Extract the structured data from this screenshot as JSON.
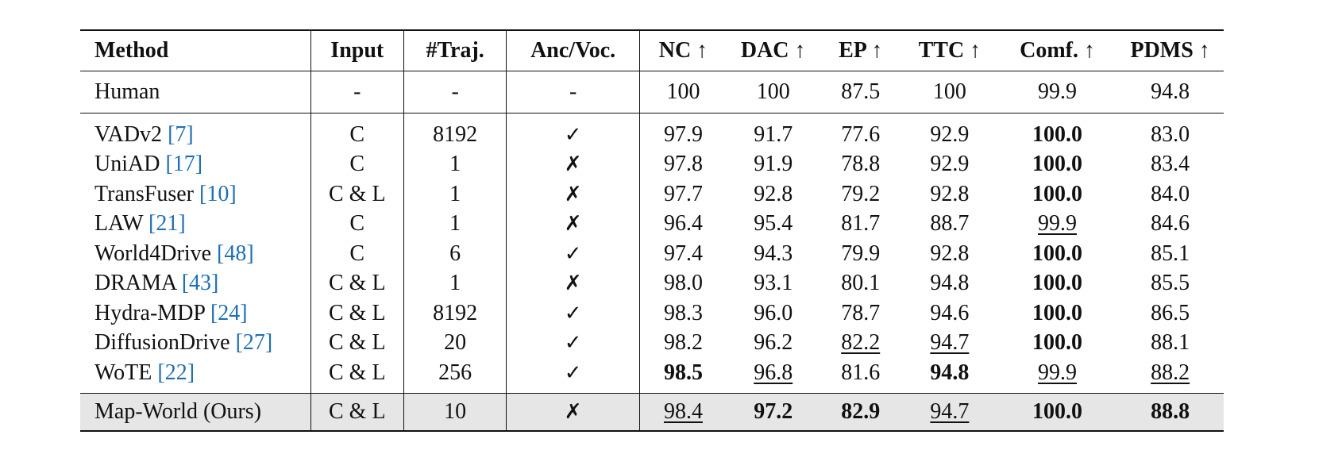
{
  "table": {
    "headers": [
      "Method",
      "Input",
      "#Traj.",
      "Anc/Voc.",
      "NC ↑",
      "DAC ↑",
      "EP ↑",
      "TTC ↑",
      "Comf. ↑",
      "PDMS ↑"
    ],
    "human": {
      "method": "Human",
      "input": "-",
      "traj": "-",
      "anc": "-",
      "nc": "100",
      "dac": "100",
      "ep": "87.5",
      "ttc": "100",
      "comf": "99.9",
      "pdms": "94.8"
    },
    "rows": [
      {
        "method": "VADv2 ",
        "ref": "[7]",
        "input": "C",
        "traj": "8192",
        "anc": "✓",
        "nc": "97.9",
        "dac": "91.7",
        "ep": "77.6",
        "ttc": "92.9",
        "comf": "100.0",
        "pdms": "83.0"
      },
      {
        "method": "UniAD ",
        "ref": "[17]",
        "input": "C",
        "traj": "1",
        "anc": "✗",
        "nc": "97.8",
        "dac": "91.9",
        "ep": "78.8",
        "ttc": "92.9",
        "comf": "100.0",
        "pdms": "83.4"
      },
      {
        "method": "TransFuser ",
        "ref": "[10]",
        "input": "C & L",
        "traj": "1",
        "anc": "✗",
        "nc": "97.7",
        "dac": "92.8",
        "ep": "79.2",
        "ttc": "92.8",
        "comf": "100.0",
        "pdms": "84.0"
      },
      {
        "method": "LAW ",
        "ref": "[21]",
        "input": "C",
        "traj": "1",
        "anc": "✗",
        "nc": "96.4",
        "dac": "95.4",
        "ep": "81.7",
        "ttc": "88.7",
        "comf": "99.9",
        "pdms": "84.6"
      },
      {
        "method": "World4Drive ",
        "ref": "[48]",
        "input": "C",
        "traj": "6",
        "anc": "✓",
        "nc": "97.4",
        "dac": "94.3",
        "ep": "79.9",
        "ttc": "92.8",
        "comf": "100.0",
        "pdms": "85.1"
      },
      {
        "method": "DRAMA ",
        "ref": "[43]",
        "input": "C & L",
        "traj": "1",
        "anc": "✗",
        "nc": "98.0",
        "dac": "93.1",
        "ep": "80.1",
        "ttc": "94.8",
        "comf": "100.0",
        "pdms": "85.5"
      },
      {
        "method": "Hydra-MDP ",
        "ref": "[24]",
        "input": "C & L",
        "traj": "8192",
        "anc": "✓",
        "nc": "98.3",
        "dac": "96.0",
        "ep": "78.7",
        "ttc": "94.6",
        "comf": "100.0",
        "pdms": "86.5"
      },
      {
        "method": "DiffusionDrive ",
        "ref": "[27]",
        "input": "C & L",
        "traj": "20",
        "anc": "✓",
        "nc": "98.2",
        "dac": "96.2",
        "ep": "82.2",
        "ttc": "94.7",
        "comf": "100.0",
        "pdms": "88.1"
      },
      {
        "method": "WoTE ",
        "ref": "[22]",
        "input": "C & L",
        "traj": "256",
        "anc": "✓",
        "nc": "98.5",
        "dac": "96.8",
        "ep": "81.6",
        "ttc": "94.8",
        "comf": "99.9",
        "pdms": "88.2"
      }
    ],
    "ours": {
      "method": "Map-World (Ours)",
      "input": "C & L",
      "traj": "10",
      "anc": "✗",
      "nc": "98.4",
      "dac": "97.2",
      "ep": "82.9",
      "ttc": "94.7",
      "comf": "100.0",
      "pdms": "88.8"
    }
  }
}
